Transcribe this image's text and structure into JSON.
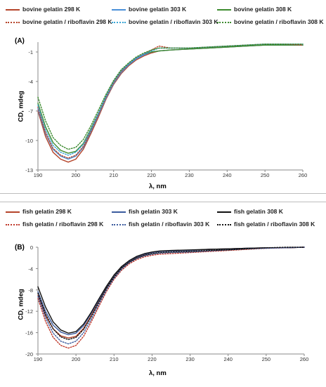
{
  "chart_data": [
    {
      "type": "line",
      "panel_label": "(A)",
      "xlabel": "λ, nm",
      "ylabel": "CD, mdeg",
      "xlim": [
        190,
        260
      ],
      "ylim": [
        -13,
        0
      ],
      "xticks": [
        190,
        200,
        210,
        220,
        230,
        240,
        250,
        260
      ],
      "yticks": [
        -1,
        -4,
        -7,
        -10,
        -13
      ],
      "grid": false,
      "legend_position": "top",
      "series": [
        {
          "name": "bovine gelatin 298 K",
          "color": "#b5442a",
          "style": "solid",
          "x": [
            190,
            192,
            194,
            196,
            198,
            200,
            202,
            204,
            206,
            208,
            210,
            212,
            214,
            216,
            218,
            220,
            222,
            225,
            230,
            235,
            240,
            245,
            250,
            255,
            260
          ],
          "y": [
            -7.0,
            -9.6,
            -11.2,
            -11.9,
            -12.2,
            -11.9,
            -10.9,
            -9.3,
            -7.6,
            -5.8,
            -4.3,
            -3.2,
            -2.4,
            -1.8,
            -1.4,
            -1.1,
            -0.9,
            -0.8,
            -0.7,
            -0.6,
            -0.5,
            -0.4,
            -0.3,
            -0.3,
            -0.3
          ]
        },
        {
          "name": "bovine gelatin 303 K",
          "color": "#4a90d9",
          "style": "solid",
          "x": [
            190,
            192,
            194,
            196,
            198,
            200,
            202,
            204,
            206,
            208,
            210,
            212,
            214,
            216,
            218,
            220,
            222,
            225,
            230,
            235,
            240,
            245,
            250,
            255,
            260
          ],
          "y": [
            -6.8,
            -9.3,
            -10.9,
            -11.6,
            -11.9,
            -11.6,
            -10.7,
            -9.1,
            -7.4,
            -5.7,
            -4.2,
            -3.1,
            -2.3,
            -1.7,
            -1.3,
            -1.0,
            -0.9,
            -0.8,
            -0.7,
            -0.6,
            -0.5,
            -0.4,
            -0.3,
            -0.3,
            -0.3
          ]
        },
        {
          "name": "bovine gelatin 308 K",
          "color": "#3d8b2f",
          "style": "solid",
          "x": [
            190,
            192,
            194,
            196,
            198,
            200,
            202,
            204,
            206,
            208,
            210,
            212,
            214,
            216,
            218,
            220,
            222,
            225,
            230,
            235,
            240,
            245,
            250,
            255,
            260
          ],
          "y": [
            -6.2,
            -8.6,
            -10.2,
            -11.0,
            -11.3,
            -11.1,
            -10.3,
            -8.8,
            -7.2,
            -5.5,
            -4.0,
            -2.9,
            -2.2,
            -1.6,
            -1.2,
            -1.0,
            -0.9,
            -0.8,
            -0.7,
            -0.6,
            -0.5,
            -0.4,
            -0.3,
            -0.3,
            -0.3
          ]
        },
        {
          "name": "bovine gelatin / riboflavin 298 K",
          "color": "#b5442a",
          "style": "dotted",
          "x": [
            190,
            192,
            194,
            196,
            198,
            200,
            202,
            204,
            206,
            208,
            210,
            212,
            214,
            216,
            218,
            220,
            222,
            225,
            230,
            235,
            240,
            245,
            250,
            255,
            260
          ],
          "y": [
            -6.6,
            -9.2,
            -10.8,
            -11.5,
            -11.8,
            -11.5,
            -10.6,
            -9.0,
            -7.3,
            -5.6,
            -4.1,
            -3.0,
            -2.2,
            -1.6,
            -1.2,
            -0.8,
            -0.4,
            -0.6,
            -0.6,
            -0.5,
            -0.4,
            -0.3,
            -0.2,
            -0.2,
            -0.3
          ]
        },
        {
          "name": "bovine gelatin / riboflavin 303 K",
          "color": "#3aa6d6",
          "style": "dotted",
          "x": [
            190,
            192,
            194,
            196,
            198,
            200,
            202,
            204,
            206,
            208,
            210,
            212,
            214,
            216,
            218,
            220,
            222,
            225,
            230,
            235,
            240,
            245,
            250,
            255,
            260
          ],
          "y": [
            -6.4,
            -8.9,
            -10.5,
            -11.2,
            -11.5,
            -11.2,
            -10.4,
            -8.9,
            -7.2,
            -5.5,
            -4.0,
            -2.9,
            -2.2,
            -1.6,
            -1.2,
            -0.9,
            -0.6,
            -0.6,
            -0.6,
            -0.5,
            -0.4,
            -0.3,
            -0.2,
            -0.2,
            -0.2
          ]
        },
        {
          "name": "bovine gelatin / riboflavin 308 K",
          "color": "#3d8b2f",
          "style": "dotted",
          "x": [
            190,
            192,
            194,
            196,
            198,
            200,
            202,
            204,
            206,
            208,
            210,
            212,
            214,
            216,
            218,
            220,
            222,
            225,
            230,
            235,
            240,
            245,
            250,
            255,
            260
          ],
          "y": [
            -5.6,
            -8.0,
            -9.7,
            -10.5,
            -10.9,
            -10.7,
            -9.9,
            -8.5,
            -6.9,
            -5.3,
            -3.9,
            -2.8,
            -2.1,
            -1.5,
            -1.1,
            -0.8,
            -0.6,
            -0.6,
            -0.6,
            -0.5,
            -0.4,
            -0.3,
            -0.2,
            -0.2,
            -0.2
          ]
        }
      ]
    },
    {
      "type": "line",
      "panel_label": "(B)",
      "xlabel": "λ, nm",
      "ylabel": "CD, mdeg",
      "xlim": [
        190,
        260
      ],
      "ylim": [
        -20,
        0
      ],
      "xticks": [
        190,
        200,
        210,
        220,
        230,
        240,
        250,
        260
      ],
      "yticks": [
        0,
        -4,
        -8,
        -12,
        -16,
        -20
      ],
      "grid": false,
      "legend_position": "top",
      "series": [
        {
          "name": "fish gelatin 298 K",
          "color": "#b5442a",
          "style": "solid",
          "x": [
            190,
            192,
            194,
            196,
            198,
            200,
            202,
            204,
            206,
            208,
            210,
            212,
            214,
            216,
            218,
            220,
            222,
            225,
            230,
            235,
            240,
            245,
            250,
            255,
            260
          ],
          "y": [
            -9.0,
            -12.8,
            -15.3,
            -16.6,
            -17.0,
            -16.7,
            -15.2,
            -12.8,
            -10.2,
            -7.6,
            -5.4,
            -3.8,
            -2.7,
            -1.9,
            -1.4,
            -1.0,
            -0.8,
            -0.7,
            -0.6,
            -0.4,
            -0.3,
            -0.2,
            -0.1,
            -0.1,
            0.0
          ]
        },
        {
          "name": "fish gelatin 303 K",
          "color": "#3b5b9e",
          "style": "solid",
          "x": [
            190,
            192,
            194,
            196,
            198,
            200,
            202,
            204,
            206,
            208,
            210,
            212,
            214,
            216,
            218,
            220,
            222,
            225,
            230,
            235,
            240,
            245,
            250,
            255,
            260
          ],
          "y": [
            -8.3,
            -12.0,
            -14.6,
            -15.9,
            -16.4,
            -16.1,
            -14.7,
            -12.4,
            -9.9,
            -7.4,
            -5.3,
            -3.7,
            -2.6,
            -1.8,
            -1.3,
            -1.0,
            -0.8,
            -0.7,
            -0.6,
            -0.4,
            -0.3,
            -0.2,
            -0.1,
            -0.1,
            0.0
          ]
        },
        {
          "name": "fish gelatin 308 K",
          "color": "#111111",
          "style": "solid",
          "x": [
            190,
            192,
            194,
            196,
            198,
            200,
            202,
            204,
            206,
            208,
            210,
            212,
            214,
            216,
            218,
            220,
            222,
            225,
            230,
            235,
            240,
            245,
            250,
            255,
            260
          ],
          "y": [
            -7.4,
            -11.2,
            -14.0,
            -15.5,
            -16.1,
            -15.8,
            -14.4,
            -12.2,
            -9.7,
            -7.3,
            -5.2,
            -3.6,
            -2.5,
            -1.7,
            -1.2,
            -0.9,
            -0.7,
            -0.6,
            -0.5,
            -0.4,
            -0.3,
            -0.2,
            -0.1,
            -0.1,
            0.0
          ]
        },
        {
          "name": "fish gelatin / riboflavin 298 K",
          "color": "#c0392b",
          "style": "dotted",
          "x": [
            190,
            192,
            194,
            196,
            198,
            200,
            202,
            204,
            206,
            208,
            210,
            212,
            214,
            216,
            218,
            220,
            222,
            225,
            230,
            235,
            240,
            245,
            250,
            255,
            260
          ],
          "y": [
            -9.6,
            -13.9,
            -16.9,
            -18.4,
            -18.9,
            -18.4,
            -16.7,
            -14.0,
            -11.1,
            -8.3,
            -6.0,
            -4.3,
            -3.1,
            -2.3,
            -1.8,
            -1.5,
            -1.3,
            -1.2,
            -1.0,
            -0.8,
            -0.6,
            -0.4,
            -0.2,
            -0.1,
            0.0
          ]
        },
        {
          "name": "fish gelatin / riboflavin 303 K",
          "color": "#3b5b9e",
          "style": "dotted",
          "x": [
            190,
            192,
            194,
            196,
            198,
            200,
            202,
            204,
            206,
            208,
            210,
            212,
            214,
            216,
            218,
            220,
            222,
            225,
            230,
            235,
            240,
            245,
            250,
            255,
            260
          ],
          "y": [
            -9.2,
            -13.2,
            -16.1,
            -17.6,
            -18.1,
            -17.6,
            -16.0,
            -13.5,
            -10.7,
            -8.0,
            -5.8,
            -4.1,
            -2.9,
            -2.1,
            -1.6,
            -1.3,
            -1.1,
            -1.0,
            -0.9,
            -0.7,
            -0.5,
            -0.3,
            -0.2,
            -0.1,
            0.0
          ]
        },
        {
          "name": "fish gelatin / riboflavin 308 K",
          "color": "#111111",
          "style": "dotted",
          "x": [
            190,
            192,
            194,
            196,
            198,
            200,
            202,
            204,
            206,
            208,
            210,
            212,
            214,
            216,
            218,
            220,
            222,
            225,
            230,
            235,
            240,
            245,
            250,
            255,
            260
          ],
          "y": [
            -8.6,
            -12.5,
            -15.3,
            -16.8,
            -17.3,
            -16.9,
            -15.4,
            -13.0,
            -10.3,
            -7.7,
            -5.6,
            -3.9,
            -2.8,
            -2.0,
            -1.5,
            -1.2,
            -1.0,
            -0.9,
            -0.8,
            -0.6,
            -0.5,
            -0.3,
            -0.1,
            0.0,
            0.0
          ]
        }
      ]
    }
  ]
}
